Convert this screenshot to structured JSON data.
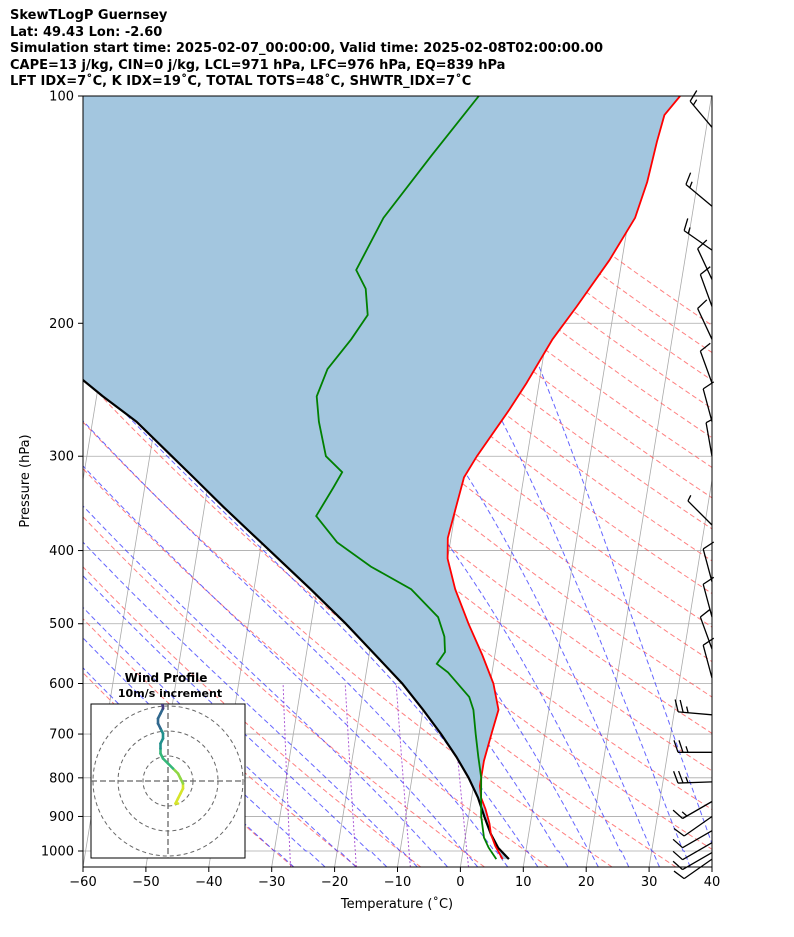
{
  "header": {
    "line1": "SkewTLogP Guernsey",
    "line2": "Lat: 49.43   Lon: -2.60",
    "line3": "Simulation start time: 2025-02-07_00:00:00, Valid time: 2025-02-08T02:00:00.00",
    "line4": "CAPE=13 j/kg, CIN=0 j/kg, LCL=971 hPa, LFC=976 hPa, EQ=839 hPa",
    "line5": "LFT IDX=7˚C, K IDX=19˚C, TOTAL TOTS=48˚C, SHWTR_IDX=7˚C"
  },
  "chart_data": {
    "type": "line",
    "title": "SkewTLogP Guernsey",
    "xlabel": "Temperature (˚C)",
    "ylabel": "Pressure (hPa)",
    "xlim": [
      -60,
      40
    ],
    "ylim": [
      1050,
      100
    ],
    "x_ticks": [
      -60,
      -50,
      -40,
      -30,
      -20,
      -10,
      0,
      10,
      20,
      30,
      40
    ],
    "x_tick_labels": [
      "−60",
      "−50",
      "−40",
      "−30",
      "−20",
      "−10",
      "0",
      "10",
      "20",
      "30",
      "40"
    ],
    "y_ticks": [
      100,
      200,
      300,
      400,
      500,
      600,
      700,
      800,
      900,
      1000
    ],
    "y_tick_labels": [
      "100",
      "200",
      "300",
      "400",
      "500",
      "600",
      "700",
      "800",
      "900",
      "1000"
    ],
    "colors": {
      "temperature": "#ff0000",
      "dewpoint": "#008000",
      "parcel": "#000000",
      "shading": "#a3c6df",
      "dry_adiabat": "#ff5555",
      "moist_adiabat": "#3333ff",
      "mixing_ratio": "#9933cc",
      "isotherm": "#aaaaaa"
    },
    "series": [
      {
        "name": "Temperature",
        "points": [
          [
            6.5,
            1025
          ],
          [
            5,
            985
          ],
          [
            4,
            950
          ],
          [
            3.5,
            920
          ],
          [
            2.5,
            880
          ],
          [
            1.5,
            850
          ],
          [
            1,
            820
          ],
          [
            1,
            760
          ],
          [
            1.5,
            700
          ],
          [
            2,
            650
          ],
          [
            0.5,
            600
          ],
          [
            -2,
            550
          ],
          [
            -5,
            500
          ],
          [
            -8,
            450
          ],
          [
            -10,
            410
          ],
          [
            -10.5,
            385
          ],
          [
            -10,
            350
          ],
          [
            -9.5,
            320
          ],
          [
            -8,
            300
          ],
          [
            -4,
            260
          ],
          [
            -2,
            240
          ],
          [
            1,
            210
          ],
          [
            4,
            190
          ],
          [
            8,
            165
          ],
          [
            11,
            145
          ],
          [
            12,
            130
          ],
          [
            12.5,
            115
          ],
          [
            13,
            106
          ],
          [
            15,
            100
          ]
        ]
      },
      {
        "name": "Dewpoint",
        "points": [
          [
            5.5,
            1025
          ],
          [
            4,
            990
          ],
          [
            3,
            960
          ],
          [
            2,
            900
          ],
          [
            1.5,
            850
          ],
          [
            1,
            800
          ],
          [
            0,
            750
          ],
          [
            -1,
            700
          ],
          [
            -2,
            650
          ],
          [
            -3,
            625
          ],
          [
            -7,
            580
          ],
          [
            -9,
            565
          ],
          [
            -8,
            545
          ],
          [
            -8.5,
            520
          ],
          [
            -10,
            490
          ],
          [
            -15,
            450
          ],
          [
            -22,
            420
          ],
          [
            -28,
            390
          ],
          [
            -32,
            360
          ],
          [
            -30,
            330
          ],
          [
            -29,
            315
          ],
          [
            -32,
            300
          ],
          [
            -34,
            270
          ],
          [
            -35,
            250
          ],
          [
            -34,
            230
          ],
          [
            -31,
            210
          ],
          [
            -29,
            195
          ],
          [
            -30,
            180
          ],
          [
            -32,
            170
          ],
          [
            -29,
            145
          ],
          [
            -23,
            120
          ],
          [
            -17,
            100
          ]
        ]
      },
      {
        "name": "Parcel",
        "points": [
          [
            7.5,
            1025
          ],
          [
            5.5,
            990
          ],
          [
            4,
            950
          ],
          [
            2.5,
            900
          ],
          [
            1,
            850
          ],
          [
            -1,
            800
          ],
          [
            -3.5,
            750
          ],
          [
            -6.5,
            700
          ],
          [
            -10,
            650
          ],
          [
            -14,
            600
          ],
          [
            -19,
            550
          ],
          [
            -24.5,
            500
          ],
          [
            -31,
            450
          ],
          [
            -38.5,
            400
          ],
          [
            -47,
            350
          ],
          [
            -52.5,
            320
          ],
          [
            -56.5,
            300
          ],
          [
            -63,
            270
          ],
          [
            -69,
            250
          ],
          [
            -75,
            230
          ],
          [
            -84,
            210
          ],
          [
            -90,
            200
          ],
          [
            -98,
            180
          ],
          [
            -107,
            160
          ],
          [
            -117,
            140
          ],
          [
            -125,
            125
          ],
          [
            -140,
            108
          ],
          [
            -147,
            100
          ]
        ]
      }
    ],
    "annotations": {
      "cape_region": "CAPE / CIN shading",
      "wind_barbs": "Wind barbs (right edge)"
    },
    "wind_barbs": [
      {
        "p": 110,
        "speed": 15,
        "angle": -40
      },
      {
        "p": 140,
        "speed": 15,
        "angle": -50
      },
      {
        "p": 160,
        "speed": 15,
        "angle": -55
      },
      {
        "p": 175,
        "speed": 10,
        "angle": -25
      },
      {
        "p": 190,
        "speed": 10,
        "angle": -20
      },
      {
        "p": 210,
        "speed": 10,
        "angle": -25
      },
      {
        "p": 240,
        "speed": 10,
        "angle": -20
      },
      {
        "p": 270,
        "speed": 10,
        "angle": -15
      },
      {
        "p": 300,
        "speed": 5,
        "angle": -10
      },
      {
        "p": 370,
        "speed": 5,
        "angle": -45
      },
      {
        "p": 440,
        "speed": 10,
        "angle": -15
      },
      {
        "p": 490,
        "speed": 10,
        "angle": -15
      },
      {
        "p": 540,
        "speed": 10,
        "angle": -20
      },
      {
        "p": 590,
        "speed": 10,
        "angle": -15
      },
      {
        "p": 660,
        "speed": 25,
        "angle": -85
      },
      {
        "p": 740,
        "speed": 25,
        "angle": -90
      },
      {
        "p": 810,
        "speed": 25,
        "angle": -92
      },
      {
        "p": 860,
        "speed": 15,
        "angle": -120
      },
      {
        "p": 900,
        "speed": 10,
        "angle": -125
      },
      {
        "p": 940,
        "speed": 10,
        "angle": -120
      },
      {
        "p": 975,
        "speed": 10,
        "angle": -120
      },
      {
        "p": 1005,
        "speed": 10,
        "angle": -120
      },
      {
        "p": 1025,
        "speed": 10,
        "angle": -125
      }
    ],
    "inset": {
      "title_line1": "Wind Profile",
      "title_line2": "10m/s increment",
      "rings": [
        10,
        20,
        30
      ],
      "hodograph": [
        [
          4,
          -9
        ],
        [
          3,
          -9
        ],
        [
          4,
          -7
        ],
        [
          5,
          -5
        ],
        [
          6,
          -3
        ],
        [
          6,
          -1
        ],
        [
          5,
          1
        ],
        [
          4,
          3
        ],
        [
          3,
          4
        ],
        [
          2,
          5
        ],
        [
          0,
          7
        ],
        [
          -2,
          9
        ],
        [
          -3,
          11
        ],
        [
          -3,
          13
        ],
        [
          -3,
          15
        ],
        [
          -2,
          17
        ],
        [
          -2,
          19
        ],
        [
          -3,
          21
        ],
        [
          -4,
          23
        ],
        [
          -4,
          25
        ],
        [
          -3,
          27
        ],
        [
          -2,
          29
        ],
        [
          -2,
          30
        ],
        [
          -3,
          32
        ],
        [
          -4,
          33
        ],
        [
          -4,
          35
        ],
        [
          -3,
          37
        ],
        [
          -2,
          38
        ],
        [
          -3,
          39
        ]
      ]
    }
  }
}
